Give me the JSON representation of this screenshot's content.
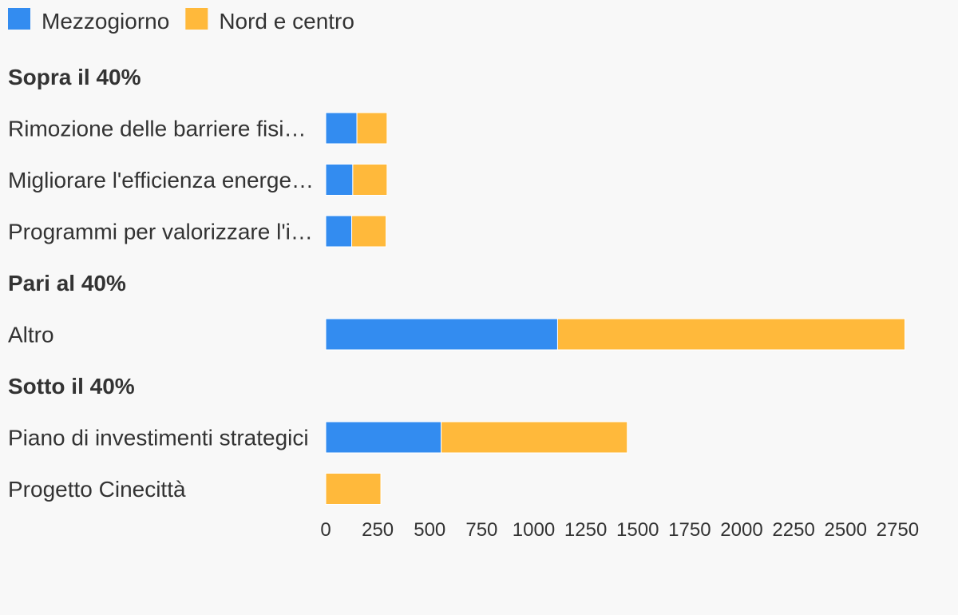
{
  "chart_data": {
    "type": "bar",
    "orientation": "horizontal",
    "stacked": true,
    "grid": false,
    "legend_position": "top-left",
    "xlim": [
      0,
      2800
    ],
    "x_ticks": [
      "0",
      "250",
      "500",
      "750",
      "1000",
      "1250",
      "1500",
      "1750",
      "2000",
      "2250",
      "2500",
      "2750"
    ],
    "series": [
      {
        "name": "Mezzogiorno",
        "color": "#338cf0"
      },
      {
        "name": "Nord e centro",
        "color": "#ffb93b"
      }
    ],
    "groups": [
      {
        "label": "Sopra il 40%",
        "rows": [
          {
            "label": "Rimozione delle barriere fisi…",
            "values": [
              150,
              145
            ]
          },
          {
            "label": "Migliorare l'efficienza energe…",
            "values": [
              130,
              165
            ]
          },
          {
            "label": "Programmi per valorizzare l'i…",
            "values": [
              125,
              165
            ]
          }
        ]
      },
      {
        "label": "Pari al 40%",
        "rows": [
          {
            "label": "Altro",
            "values": [
              1115,
              1670
            ]
          }
        ]
      },
      {
        "label": "Sotto il 40%",
        "rows": [
          {
            "label": "Piano di investimenti strategici",
            "values": [
              555,
              895
            ]
          },
          {
            "label": "Progetto Cinecittà",
            "values": [
              0,
              265
            ]
          }
        ]
      }
    ]
  }
}
